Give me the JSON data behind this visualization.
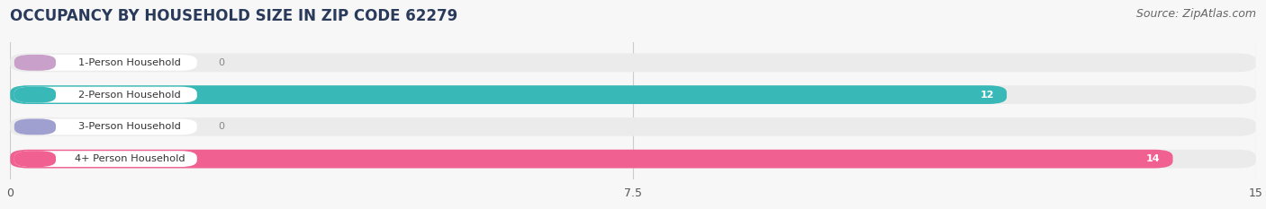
{
  "title": "OCCUPANCY BY HOUSEHOLD SIZE IN ZIP CODE 62279",
  "source": "Source: ZipAtlas.com",
  "categories": [
    "1-Person Household",
    "2-Person Household",
    "3-Person Household",
    "4+ Person Household"
  ],
  "values": [
    0,
    12,
    0,
    14
  ],
  "bar_colors": [
    "#c9a0c9",
    "#39b8b8",
    "#a0a0d0",
    "#f06090"
  ],
  "label_accent_colors": [
    "#c9a0c9",
    "#39b8b8",
    "#a0a0d0",
    "#f06090"
  ],
  "xlim": [
    0,
    15
  ],
  "xticks": [
    0,
    7.5,
    15
  ],
  "background_color": "#f7f7f7",
  "track_color": "#ebebeb",
  "label_box_color": "#ffffff",
  "title_color": "#2a3a5a",
  "source_color": "#666666",
  "title_fontsize": 12,
  "source_fontsize": 9
}
